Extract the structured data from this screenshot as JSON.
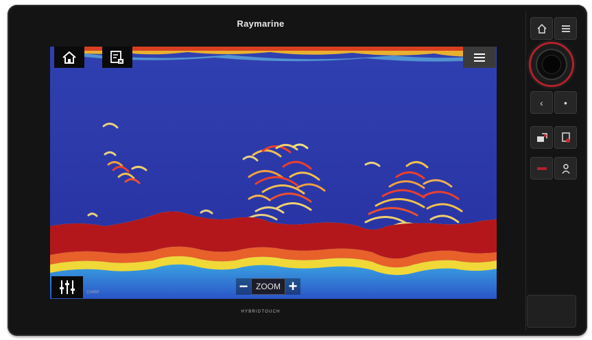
{
  "device": {
    "brand": "Raymarine",
    "footer_brand": "HYBRIDTOUCH"
  },
  "screen": {
    "view": "sonar",
    "mode_tag": "CHIRP",
    "zoom_label": "ZOOM",
    "zoom_minus": "−",
    "zoom_plus": "+"
  },
  "overlay_buttons": {
    "home_icon": "home-icon",
    "sonar_icon": "sonar-source-icon",
    "menu_icon": "hamburger-menu-icon",
    "settings_icon": "sliders-settings-icon"
  },
  "hardware_keys": {
    "home": "⌂",
    "menu": "≡",
    "back": "‹",
    "ok": "•",
    "waypoint_icon": "waypoint-icon",
    "mob_icon": "mob-icon",
    "power_icon": "power-icon",
    "user_icon": "user-icon"
  },
  "colors": {
    "water": "#2c35a5",
    "bottom_red": "#b3171c",
    "knob_ring": "#b3212c"
  }
}
